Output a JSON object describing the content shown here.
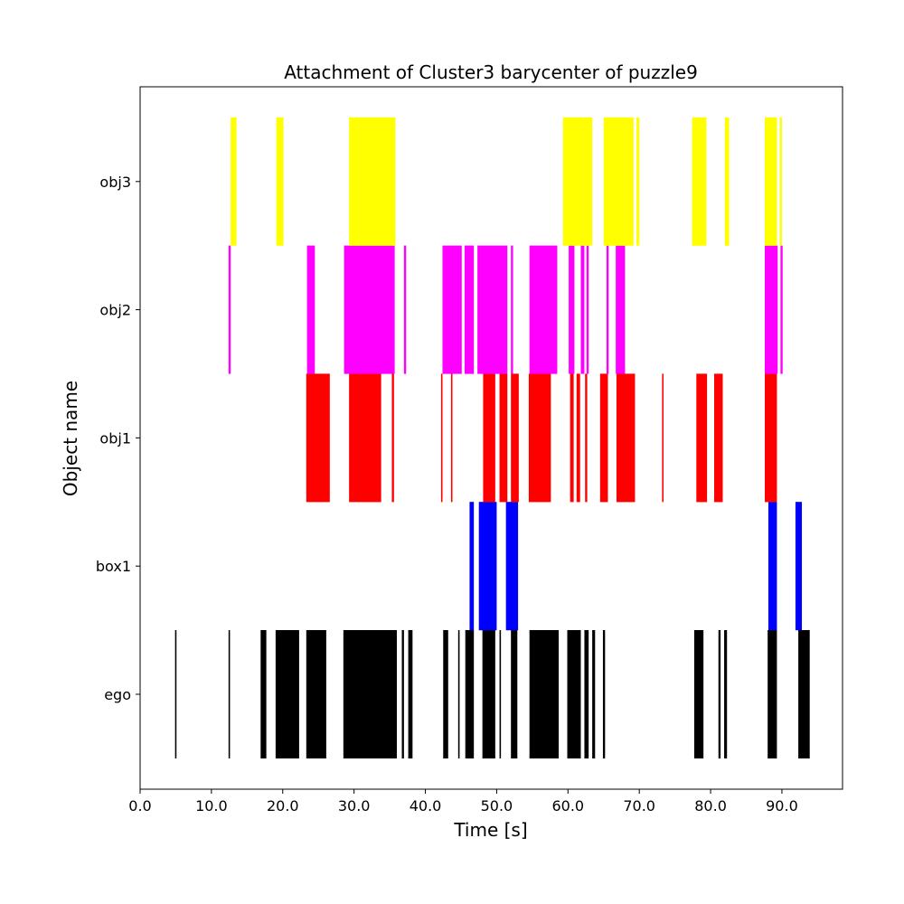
{
  "chart_data": {
    "type": "bar",
    "orientation": "horizontal-timeline",
    "title": "Attachment of Cluster3 barycenter of puzzle9",
    "xlabel": "Time [s]",
    "ylabel": "Object name",
    "xlim": [
      0,
      98.5
    ],
    "xticks": [
      0,
      10,
      20,
      30,
      40,
      50,
      60,
      70,
      80,
      90
    ],
    "xtick_labels": [
      "0.0",
      "10.0",
      "20.0",
      "30.0",
      "40.0",
      "50.0",
      "60.0",
      "70.0",
      "80.0",
      "90.0"
    ],
    "categories": [
      "ego",
      "box1",
      "obj1",
      "obj2",
      "obj3"
    ],
    "grid": false,
    "series": [
      {
        "name": "ego",
        "color": "#000000",
        "intervals": [
          [
            4.9,
            5.1
          ],
          [
            12.4,
            12.6
          ],
          [
            16.9,
            17.7
          ],
          [
            19.0,
            22.3
          ],
          [
            23.3,
            26.1
          ],
          [
            28.5,
            36.0
          ],
          [
            36.7,
            37.0
          ],
          [
            37.6,
            38.2
          ],
          [
            42.5,
            43.2
          ],
          [
            44.6,
            44.8
          ],
          [
            45.6,
            46.8
          ],
          [
            48.0,
            49.8
          ],
          [
            50.4,
            50.6
          ],
          [
            52.0,
            52.9
          ],
          [
            54.6,
            58.7
          ],
          [
            59.9,
            61.8
          ],
          [
            62.3,
            62.9
          ],
          [
            63.4,
            63.8
          ],
          [
            64.9,
            65.2
          ],
          [
            77.7,
            79.0
          ],
          [
            81.1,
            81.4
          ],
          [
            81.9,
            82.3
          ],
          [
            88.0,
            89.3
          ],
          [
            92.3,
            93.9
          ]
        ]
      },
      {
        "name": "box1",
        "color": "#0000ff",
        "intervals": [
          [
            46.2,
            46.8
          ],
          [
            47.5,
            50.0
          ],
          [
            51.3,
            53.0
          ],
          [
            88.1,
            89.3
          ],
          [
            91.9,
            92.8
          ]
        ]
      },
      {
        "name": "obj1",
        "color": "#ff0000",
        "intervals": [
          [
            23.3,
            26.6
          ],
          [
            29.3,
            33.8
          ],
          [
            35.3,
            35.6
          ],
          [
            42.2,
            42.4
          ],
          [
            43.6,
            43.8
          ],
          [
            48.1,
            49.8
          ],
          [
            50.4,
            51.5
          ],
          [
            52.0,
            53.1
          ],
          [
            54.5,
            57.6
          ],
          [
            60.3,
            60.8
          ],
          [
            61.2,
            61.7
          ],
          [
            62.4,
            62.7
          ],
          [
            64.5,
            65.6
          ],
          [
            66.8,
            69.4
          ],
          [
            73.2,
            73.4
          ],
          [
            78.0,
            79.5
          ],
          [
            80.5,
            81.7
          ],
          [
            87.6,
            89.3
          ]
        ]
      },
      {
        "name": "obj2",
        "color": "#ff00ff",
        "intervals": [
          [
            12.4,
            12.7
          ],
          [
            23.4,
            24.5
          ],
          [
            28.6,
            35.7
          ],
          [
            37.0,
            37.3
          ],
          [
            42.4,
            45.1
          ],
          [
            45.5,
            46.8
          ],
          [
            47.3,
            51.5
          ],
          [
            52.0,
            52.3
          ],
          [
            54.6,
            58.5
          ],
          [
            60.1,
            60.9
          ],
          [
            61.8,
            62.3
          ],
          [
            62.6,
            62.9
          ],
          [
            65.4,
            65.7
          ],
          [
            66.7,
            68.0
          ],
          [
            87.6,
            89.4
          ],
          [
            89.8,
            90.1
          ]
        ]
      },
      {
        "name": "obj3",
        "color": "#ffff00",
        "intervals": [
          [
            12.7,
            13.5
          ],
          [
            19.1,
            20.1
          ],
          [
            29.3,
            35.8
          ],
          [
            59.3,
            63.4
          ],
          [
            65.0,
            69.2
          ],
          [
            69.6,
            70.0
          ],
          [
            77.4,
            79.4
          ],
          [
            82.0,
            82.6
          ],
          [
            87.6,
            89.3
          ],
          [
            89.7,
            90.0
          ]
        ]
      }
    ]
  }
}
